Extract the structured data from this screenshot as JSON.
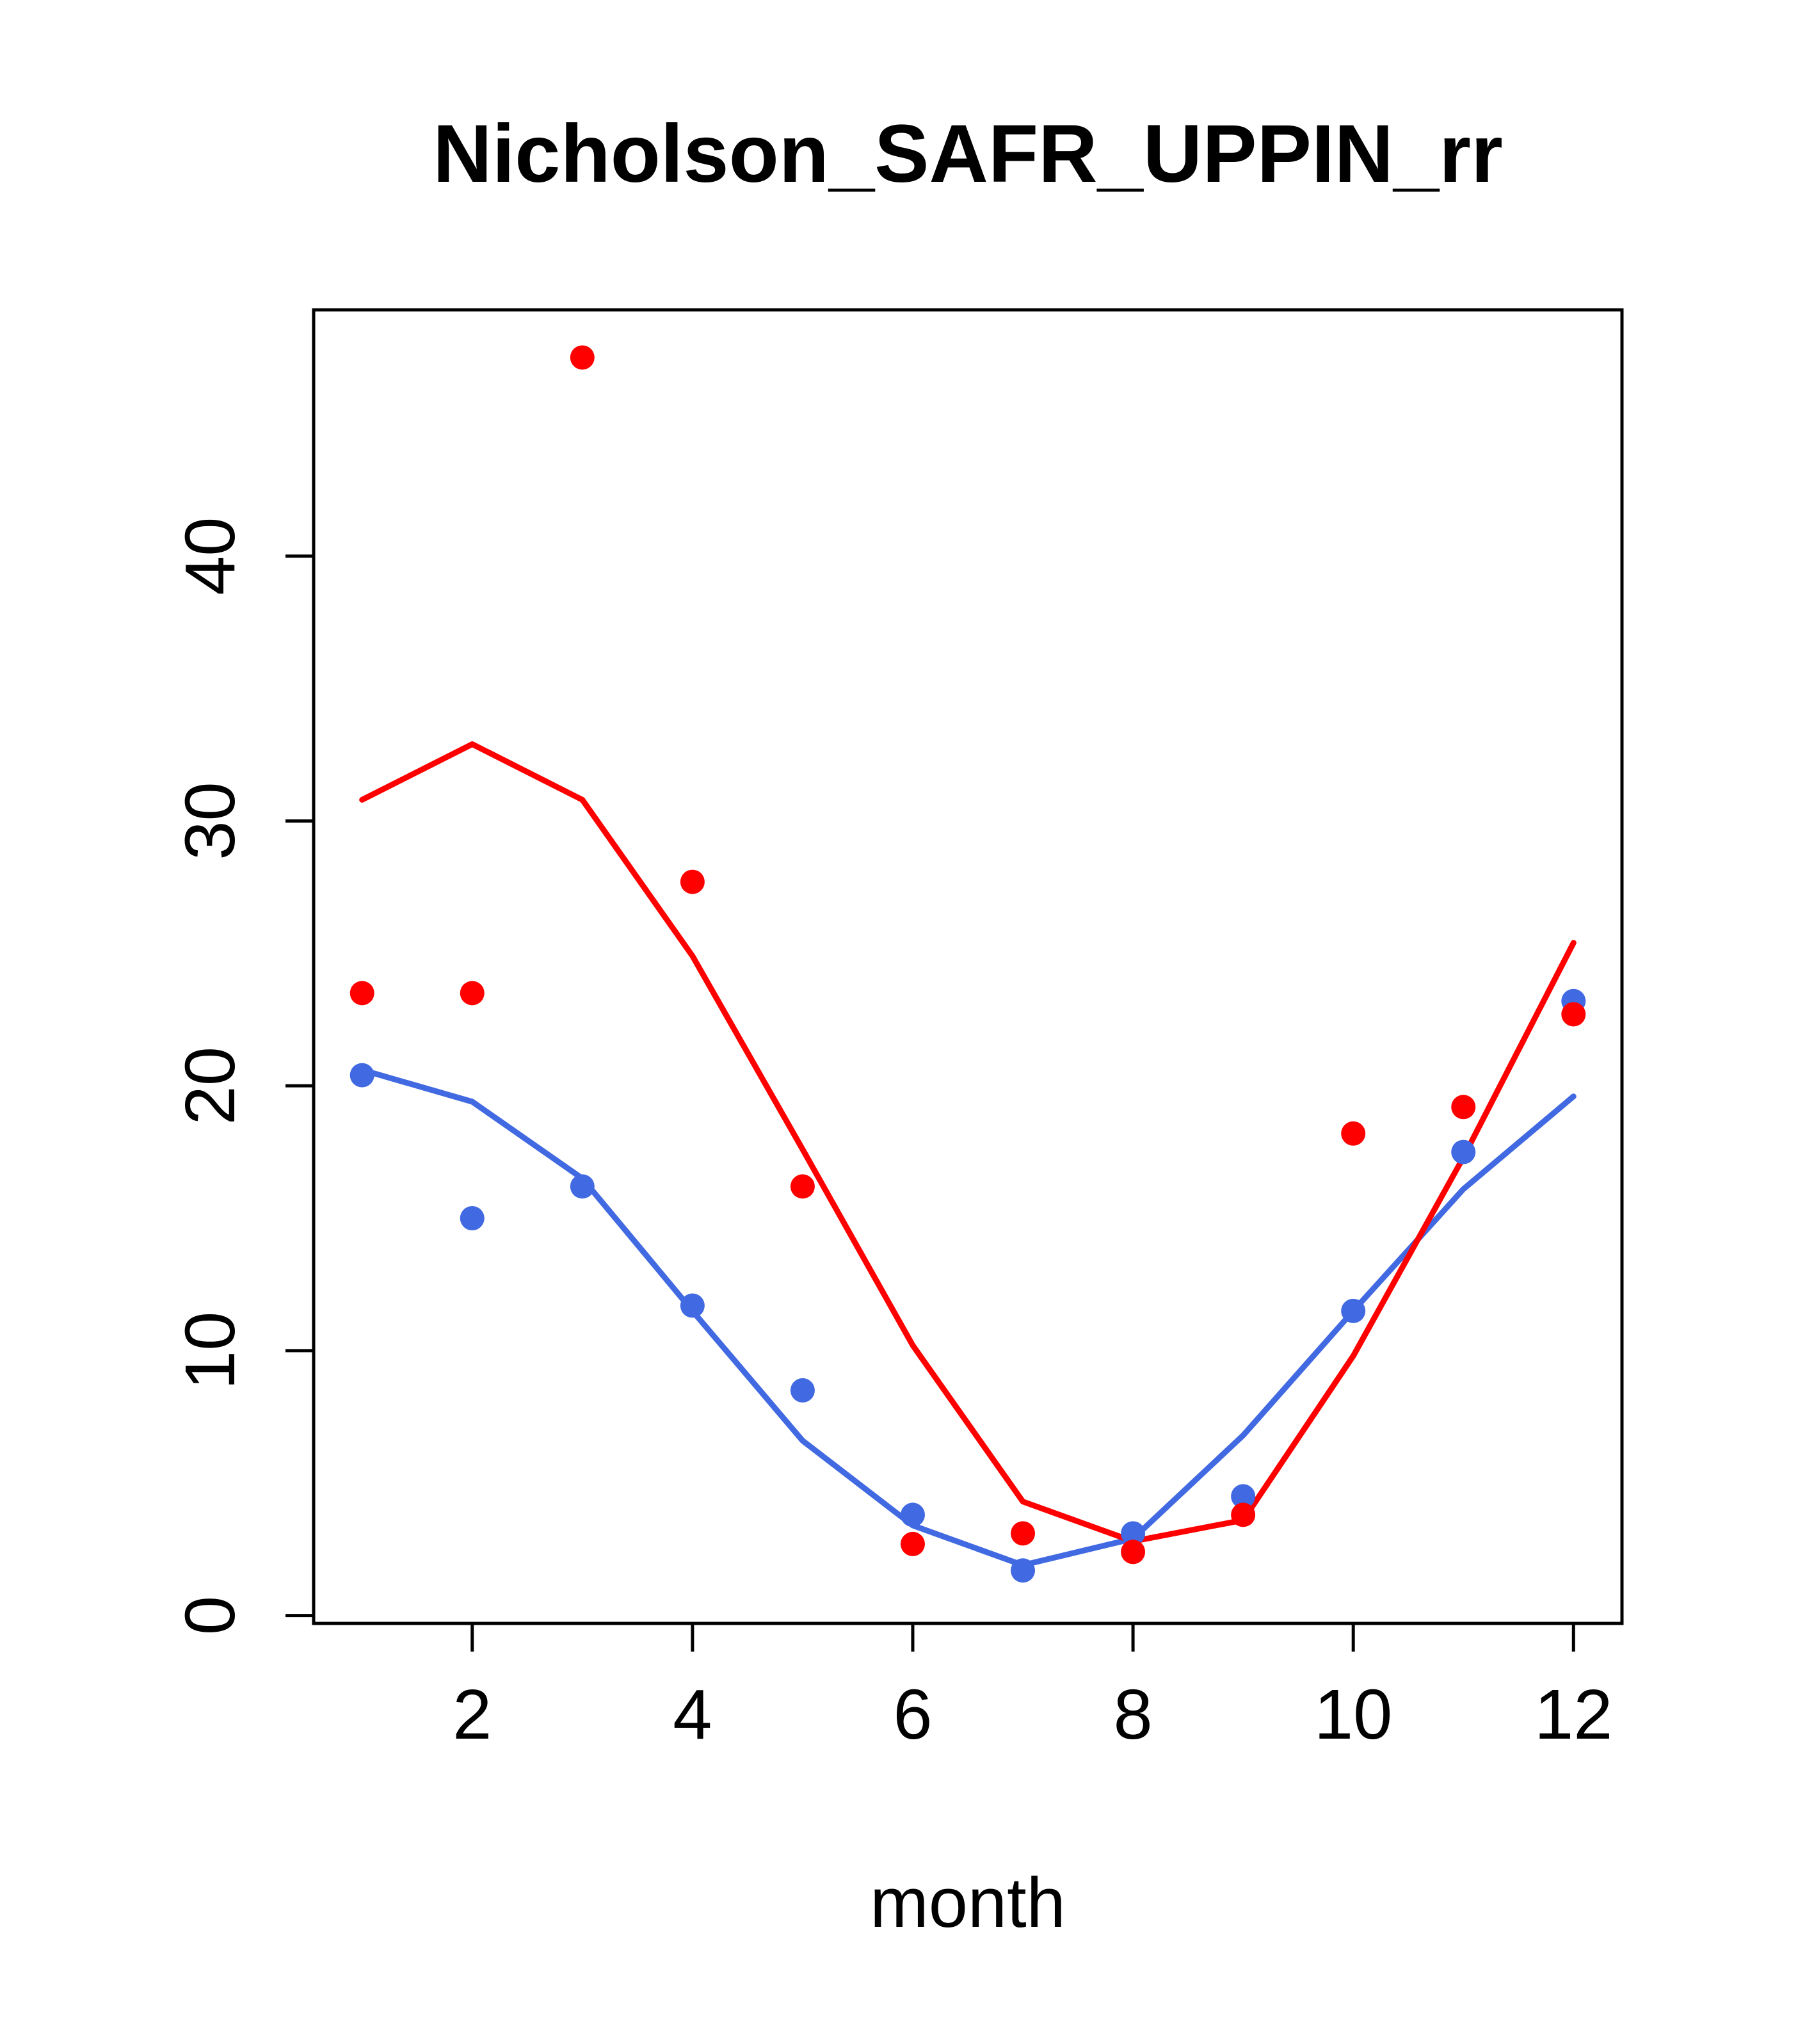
{
  "chart_data": {
    "type": "scatter",
    "title": "Nicholson_SAFR_UPPIN_rr",
    "xlabel": "month",
    "ylabel": "",
    "xlim": [
      0.56,
      12.44
    ],
    "ylim": [
      -0.3,
      49.3
    ],
    "x_ticks": [
      2,
      4,
      6,
      8,
      10,
      12
    ],
    "y_ticks": [
      0,
      10,
      20,
      30,
      40
    ],
    "grid": false,
    "legend_position": "none",
    "x": [
      1,
      2,
      3,
      4,
      5,
      6,
      7,
      8,
      9,
      10,
      11,
      12
    ],
    "colors": {
      "red": "#FF0000",
      "blue": "#4169E1"
    },
    "series": [
      {
        "name": "blue-line",
        "type": "line",
        "color": "#4169E1",
        "values": [
          20.6,
          19.4,
          16.5,
          11.5,
          6.6,
          3.4,
          1.9,
          2.9,
          6.8,
          11.5,
          16.1,
          19.6
        ]
      },
      {
        "name": "red-line",
        "type": "line",
        "color": "#FF0000",
        "values": [
          30.8,
          32.9,
          30.8,
          24.9,
          17.6,
          10.2,
          4.3,
          2.8,
          3.6,
          9.8,
          17.3,
          25.4
        ]
      },
      {
        "name": "blue-points",
        "type": "scatter",
        "color": "#4169E1",
        "values": [
          20.4,
          15.0,
          16.2,
          11.7,
          8.5,
          3.8,
          1.7,
          3.1,
          4.5,
          11.5,
          17.5,
          23.2
        ]
      },
      {
        "name": "red-points",
        "type": "scatter",
        "color": "#FF0000",
        "values": [
          23.5,
          23.5,
          47.5,
          27.7,
          16.2,
          2.7,
          3.1,
          2.4,
          3.8,
          18.2,
          19.2,
          22.7
        ]
      }
    ]
  }
}
